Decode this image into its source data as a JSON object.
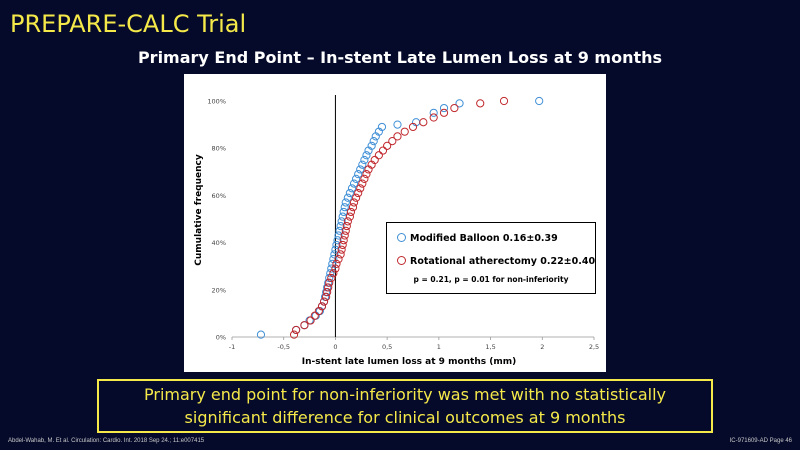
{
  "slide": {
    "title": "PREPARE-CALC Trial",
    "chart_heading": "Primary End Point – In-stent Late Lumen Loss at 9 months",
    "conclusion": "Primary end point for non-inferiority was met with no statistically significant difference for clinical outcomes at 9 months",
    "footer_citation": "Abdel-Wahab, M. Et al. Circulation: Cardio. Int. 2018 Sep 24.; 11:e007415",
    "footer_page": "IC-971609-AD Page 46"
  },
  "colors": {
    "background": "#050a2a",
    "title": "#f5e94a",
    "modified_balloon": "#3f8fd6",
    "rotational_atherectomy": "#c0282d"
  },
  "chart_data": {
    "type": "scatter",
    "title": "Primary End Point – In-stent Late Lumen Loss at 9 months",
    "xlabel": "In-stent late lumen loss at 9 months (mm)",
    "ylabel": "Cumulative frequency",
    "xlim": [
      -1,
      2.5
    ],
    "ylim": [
      0,
      100
    ],
    "x_ticks": [
      -1,
      -0.5,
      0,
      0.5,
      1,
      1.5,
      2,
      2.5
    ],
    "x_tick_labels": [
      "-1",
      "-0,5",
      "0",
      "0,5",
      "1",
      "1,5",
      "2",
      "2,5"
    ],
    "y_ticks": [
      0,
      20,
      40,
      60,
      80,
      100
    ],
    "y_tick_labels": [
      "0%",
      "20%",
      "40%",
      "60%",
      "80%",
      "100%"
    ],
    "vertical_reference_x": 0,
    "grid": false,
    "legend_position": "center-right",
    "p_value_note": "p = 0.21, p = 0.01 for non-inferiority",
    "series": [
      {
        "name": "Modified Balloon 0.16±0.39",
        "color": "#3f8fd6",
        "points": [
          [
            -0.72,
            1
          ],
          [
            -0.38,
            3
          ],
          [
            -0.3,
            5
          ],
          [
            -0.25,
            7
          ],
          [
            -0.19,
            9
          ],
          [
            -0.15,
            11
          ],
          [
            -0.13,
            13
          ],
          [
            -0.11,
            15
          ],
          [
            -0.1,
            17
          ],
          [
            -0.09,
            19
          ],
          [
            -0.08,
            21
          ],
          [
            -0.07,
            23
          ],
          [
            -0.06,
            25
          ],
          [
            -0.05,
            27
          ],
          [
            -0.04,
            29
          ],
          [
            -0.03,
            31
          ],
          [
            -0.02,
            33
          ],
          [
            -0.01,
            35
          ],
          [
            0.0,
            37
          ],
          [
            0.01,
            39
          ],
          [
            0.02,
            41
          ],
          [
            0.03,
            43
          ],
          [
            0.04,
            45
          ],
          [
            0.05,
            47
          ],
          [
            0.06,
            49
          ],
          [
            0.07,
            51
          ],
          [
            0.08,
            53
          ],
          [
            0.09,
            55
          ],
          [
            0.1,
            57
          ],
          [
            0.12,
            59
          ],
          [
            0.14,
            61
          ],
          [
            0.16,
            63
          ],
          [
            0.18,
            65
          ],
          [
            0.2,
            67
          ],
          [
            0.22,
            69
          ],
          [
            0.24,
            71
          ],
          [
            0.26,
            73
          ],
          [
            0.28,
            75
          ],
          [
            0.3,
            77
          ],
          [
            0.32,
            79
          ],
          [
            0.35,
            81
          ],
          [
            0.37,
            83
          ],
          [
            0.39,
            85
          ],
          [
            0.42,
            87
          ],
          [
            0.45,
            89
          ],
          [
            0.6,
            90
          ],
          [
            0.78,
            91
          ],
          [
            0.95,
            95
          ],
          [
            1.05,
            97
          ],
          [
            1.2,
            99
          ],
          [
            1.97,
            100
          ]
        ]
      },
      {
        "name": "Rotational atherectomy 0.22±0.40",
        "color": "#c0282d",
        "points": [
          [
            -0.4,
            1
          ],
          [
            -0.38,
            3
          ],
          [
            -0.3,
            5
          ],
          [
            -0.24,
            7
          ],
          [
            -0.2,
            9
          ],
          [
            -0.16,
            11
          ],
          [
            -0.13,
            13
          ],
          [
            -0.11,
            15
          ],
          [
            -0.09,
            17
          ],
          [
            -0.08,
            19
          ],
          [
            -0.07,
            21
          ],
          [
            -0.06,
            23
          ],
          [
            -0.04,
            25
          ],
          [
            -0.02,
            27
          ],
          [
            0.0,
            29
          ],
          [
            0.01,
            31
          ],
          [
            0.03,
            33
          ],
          [
            0.05,
            35
          ],
          [
            0.06,
            37
          ],
          [
            0.07,
            39
          ],
          [
            0.08,
            41
          ],
          [
            0.09,
            43
          ],
          [
            0.1,
            45
          ],
          [
            0.11,
            47
          ],
          [
            0.12,
            49
          ],
          [
            0.14,
            51
          ],
          [
            0.15,
            53
          ],
          [
            0.17,
            55
          ],
          [
            0.18,
            57
          ],
          [
            0.2,
            59
          ],
          [
            0.22,
            61
          ],
          [
            0.24,
            63
          ],
          [
            0.26,
            65
          ],
          [
            0.28,
            67
          ],
          [
            0.3,
            69
          ],
          [
            0.32,
            71
          ],
          [
            0.35,
            73
          ],
          [
            0.38,
            75
          ],
          [
            0.42,
            77
          ],
          [
            0.46,
            79
          ],
          [
            0.5,
            81
          ],
          [
            0.55,
            83
          ],
          [
            0.6,
            85
          ],
          [
            0.67,
            87
          ],
          [
            0.75,
            89
          ],
          [
            0.85,
            91
          ],
          [
            0.95,
            93
          ],
          [
            1.05,
            95
          ],
          [
            1.15,
            97
          ],
          [
            1.4,
            99
          ],
          [
            1.63,
            100
          ]
        ]
      }
    ]
  }
}
